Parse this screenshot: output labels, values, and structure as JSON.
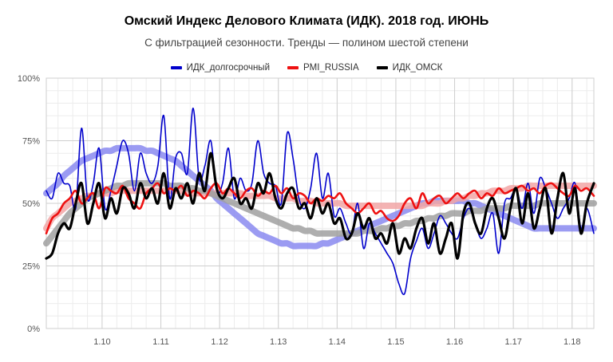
{
  "chart_data": {
    "type": "line",
    "title": "Омский Индекс Делового Климата (ИДК). 2018 год. ИЮНЬ",
    "subtitle": "С фильтрацией сезонности. Тренды — полином шестой степени",
    "xlabel": "",
    "ylabel": "",
    "x_ticks": [
      "1.10",
      "1.11",
      "1.12",
      "1.13",
      "1.14",
      "1.15",
      "1.16",
      "1.17",
      "1.18"
    ],
    "x_tick_values": [
      1.1,
      1.11,
      1.12,
      1.13,
      1.14,
      1.15,
      1.16,
      1.17,
      1.18
    ],
    "xlim": [
      1.0905,
      1.1837
    ],
    "y_ticks": [
      "0%",
      "25%",
      "50%",
      "75%",
      "100%"
    ],
    "y_tick_values": [
      0,
      25,
      50,
      75,
      100
    ],
    "ylim": [
      0,
      100
    ],
    "grid": true,
    "legend_position": "top",
    "series": [
      {
        "name": "ИДК_долгосрочный",
        "color": "#0000cc",
        "trend_color": "#8a8af0",
        "x": [
          1.0905,
          1.0915,
          1.0925,
          1.0935,
          1.0945,
          1.0955,
          1.0965,
          1.0975,
          1.0985,
          1.0995,
          1.1005,
          1.1015,
          1.1025,
          1.1035,
          1.1045,
          1.1055,
          1.1065,
          1.1075,
          1.1085,
          1.1095,
          1.1105,
          1.1115,
          1.1125,
          1.1135,
          1.1145,
          1.1155,
          1.1165,
          1.1175,
          1.1185,
          1.1195,
          1.1205,
          1.1215,
          1.1225,
          1.1235,
          1.1245,
          1.1255,
          1.1265,
          1.1275,
          1.1285,
          1.1295,
          1.1305,
          1.1315,
          1.1325,
          1.1335,
          1.1345,
          1.1355,
          1.1365,
          1.1375,
          1.1385,
          1.1395,
          1.1405,
          1.1415,
          1.1425,
          1.1435,
          1.1445,
          1.1455,
          1.1465,
          1.1475,
          1.1485,
          1.1495,
          1.1505,
          1.1515,
          1.1525,
          1.1535,
          1.1545,
          1.1555,
          1.1565,
          1.1575,
          1.1585,
          1.1595,
          1.1605,
          1.1615,
          1.1625,
          1.1635,
          1.1645,
          1.1655,
          1.1665,
          1.1675,
          1.1685,
          1.1695,
          1.1705,
          1.1715,
          1.1725,
          1.1735,
          1.1745,
          1.1755,
          1.1765,
          1.1775,
          1.1785,
          1.1795,
          1.1805,
          1.1815,
          1.1825,
          1.1837
        ],
        "y": [
          55,
          52,
          62,
          58,
          57,
          48,
          80,
          52,
          58,
          72,
          48,
          55,
          65,
          75,
          70,
          55,
          70,
          62,
          58,
          65,
          85,
          52,
          68,
          70,
          62,
          88,
          60,
          65,
          75,
          55,
          58,
          72,
          52,
          60,
          55,
          58,
          75,
          62,
          58,
          57,
          50,
          78,
          68,
          52,
          48,
          56,
          70,
          52,
          62,
          45,
          48,
          42,
          38,
          50,
          32,
          42,
          38,
          34,
          30,
          26,
          18,
          14,
          28,
          35,
          40,
          32,
          38,
          45,
          42,
          38,
          36,
          44,
          48,
          42,
          36,
          40,
          46,
          30,
          50,
          52,
          56,
          48,
          58,
          46,
          60,
          56,
          50,
          44,
          48,
          52,
          58,
          40,
          48,
          38
        ],
        "trend": [
          54,
          56,
          58,
          61,
          63,
          65,
          67,
          68,
          69,
          70,
          71,
          71,
          72,
          72,
          72,
          72,
          72,
          71,
          71,
          70,
          69,
          68,
          67,
          65,
          63,
          61,
          59,
          57,
          55,
          52,
          50,
          48,
          46,
          44,
          42,
          40,
          38,
          37,
          36,
          35,
          34,
          34,
          33,
          33,
          33,
          33,
          33,
          34,
          34,
          35,
          36,
          37,
          38,
          39,
          40,
          41,
          42,
          43,
          44,
          45,
          46,
          47,
          48,
          49,
          50,
          50,
          51,
          51,
          51,
          51,
          51,
          51,
          50,
          50,
          49,
          48,
          47,
          46,
          45,
          44,
          43,
          42,
          41,
          40,
          40,
          40,
          40,
          40,
          40,
          40,
          40,
          40,
          40,
          40
        ]
      },
      {
        "name": "PMI_RUSSIA",
        "color": "#ee1111",
        "trend_color": "#f2a6a6",
        "x": [
          1.0905,
          1.0915,
          1.0925,
          1.0935,
          1.0945,
          1.0955,
          1.0965,
          1.0975,
          1.0985,
          1.0995,
          1.1005,
          1.1015,
          1.1025,
          1.1035,
          1.1045,
          1.1055,
          1.1065,
          1.1075,
          1.1085,
          1.1095,
          1.1105,
          1.1115,
          1.1125,
          1.1135,
          1.1145,
          1.1155,
          1.1165,
          1.1175,
          1.1185,
          1.1195,
          1.1205,
          1.1215,
          1.1225,
          1.1235,
          1.1245,
          1.1255,
          1.1265,
          1.1275,
          1.1285,
          1.1295,
          1.1305,
          1.1315,
          1.1325,
          1.1335,
          1.1345,
          1.1355,
          1.1365,
          1.1375,
          1.1385,
          1.1395,
          1.1405,
          1.1415,
          1.1425,
          1.1435,
          1.1445,
          1.1455,
          1.1465,
          1.1475,
          1.1485,
          1.1495,
          1.1505,
          1.1515,
          1.1525,
          1.1535,
          1.1545,
          1.1555,
          1.1565,
          1.1575,
          1.1585,
          1.1595,
          1.1605,
          1.1615,
          1.1625,
          1.1635,
          1.1645,
          1.1655,
          1.1665,
          1.1675,
          1.1685,
          1.1695,
          1.1705,
          1.1715,
          1.1725,
          1.1735,
          1.1745,
          1.1755,
          1.1765,
          1.1775,
          1.1785,
          1.1795,
          1.1805,
          1.1815,
          1.1825,
          1.1837
        ],
        "y": [
          38,
          44,
          46,
          50,
          52,
          55,
          50,
          52,
          54,
          48,
          56,
          55,
          54,
          57,
          52,
          50,
          48,
          54,
          56,
          58,
          54,
          56,
          55,
          57,
          53,
          55,
          54,
          52,
          56,
          58,
          54,
          56,
          54,
          52,
          55,
          56,
          53,
          55,
          54,
          57,
          54,
          56,
          52,
          54,
          53,
          50,
          52,
          51,
          53,
          52,
          54,
          50,
          48,
          46,
          48,
          50,
          46,
          47,
          44,
          43,
          45,
          50,
          52,
          48,
          54,
          50,
          52,
          53,
          50,
          52,
          54,
          52,
          54,
          55,
          52,
          54,
          53,
          56,
          54,
          55,
          56,
          57,
          55,
          56,
          54,
          57,
          58,
          56,
          54,
          53,
          57,
          55,
          56,
          53
        ],
        "trend": [
          40,
          44,
          46,
          48,
          50,
          51,
          52,
          53,
          53,
          54,
          54,
          54,
          55,
          55,
          55,
          55,
          55,
          55,
          55,
          55,
          55,
          55,
          55,
          55,
          54,
          54,
          54,
          54,
          54,
          54,
          54,
          54,
          54,
          54,
          53,
          53,
          53,
          53,
          53,
          52,
          52,
          52,
          52,
          51,
          51,
          51,
          50,
          50,
          50,
          50,
          50,
          49,
          49,
          49,
          49,
          49,
          49,
          49,
          49,
          49,
          49,
          49,
          49,
          49,
          49,
          50,
          50,
          50,
          51,
          51,
          52,
          52,
          53,
          53,
          54,
          54,
          55,
          55,
          55,
          56,
          56,
          56,
          57,
          57,
          57,
          57,
          57,
          57,
          57,
          57,
          57,
          57,
          57,
          57
        ]
      },
      {
        "name": "ИДК_ОМСК",
        "color": "#000000",
        "trend_color": "#a0a0a0",
        "x": [
          1.0905,
          1.0915,
          1.0925,
          1.0935,
          1.0945,
          1.0955,
          1.0965,
          1.0975,
          1.0985,
          1.0995,
          1.1005,
          1.1015,
          1.1025,
          1.1035,
          1.1045,
          1.1055,
          1.1065,
          1.1075,
          1.1085,
          1.1095,
          1.1105,
          1.1115,
          1.1125,
          1.1135,
          1.1145,
          1.1155,
          1.1165,
          1.1175,
          1.1185,
          1.1195,
          1.1205,
          1.1215,
          1.1225,
          1.1235,
          1.1245,
          1.1255,
          1.1265,
          1.1275,
          1.1285,
          1.1295,
          1.1305,
          1.1315,
          1.1325,
          1.1335,
          1.1345,
          1.1355,
          1.1365,
          1.1375,
          1.1385,
          1.1395,
          1.1405,
          1.1415,
          1.1425,
          1.1435,
          1.1445,
          1.1455,
          1.1465,
          1.1475,
          1.1485,
          1.1495,
          1.1505,
          1.1515,
          1.1525,
          1.1535,
          1.1545,
          1.1555,
          1.1565,
          1.1575,
          1.1585,
          1.1595,
          1.1605,
          1.1615,
          1.1625,
          1.1635,
          1.1645,
          1.1655,
          1.1665,
          1.1675,
          1.1685,
          1.1695,
          1.1705,
          1.1715,
          1.1725,
          1.1735,
          1.1745,
          1.1755,
          1.1765,
          1.1775,
          1.1785,
          1.1795,
          1.1805,
          1.1815,
          1.1825,
          1.1837
        ],
        "y": [
          28,
          30,
          38,
          42,
          40,
          50,
          58,
          42,
          50,
          58,
          44,
          52,
          46,
          56,
          54,
          48,
          58,
          52,
          56,
          50,
          62,
          48,
          56,
          52,
          58,
          50,
          62,
          55,
          70,
          56,
          52,
          56,
          60,
          50,
          52,
          48,
          58,
          54,
          62,
          52,
          48,
          54,
          56,
          48,
          50,
          44,
          52,
          46,
          50,
          42,
          44,
          36,
          38,
          46,
          40,
          44,
          36,
          38,
          34,
          42,
          30,
          36,
          32,
          40,
          44,
          34,
          42,
          30,
          36,
          42,
          28,
          46,
          50,
          42,
          38,
          48,
          52,
          44,
          36,
          48,
          56,
          42,
          54,
          40,
          48,
          56,
          38,
          52,
          62,
          46,
          56,
          38,
          50,
          58
        ],
        "trend": [
          34,
          37,
          40,
          43,
          46,
          48,
          50,
          52,
          53,
          54,
          55,
          56,
          57,
          57,
          58,
          58,
          58,
          58,
          58,
          58,
          58,
          57,
          57,
          57,
          56,
          56,
          55,
          55,
          54,
          53,
          52,
          51,
          50,
          49,
          48,
          47,
          46,
          45,
          44,
          43,
          42,
          41,
          40,
          40,
          39,
          39,
          38,
          38,
          38,
          38,
          38,
          38,
          38,
          38,
          39,
          39,
          39,
          40,
          40,
          41,
          41,
          42,
          42,
          43,
          43,
          44,
          44,
          45,
          45,
          46,
          46,
          46,
          47,
          47,
          47,
          48,
          48,
          48,
          48,
          49,
          49,
          49,
          49,
          49,
          50,
          50,
          50,
          50,
          50,
          50,
          50,
          50,
          50,
          50
        ]
      }
    ]
  }
}
